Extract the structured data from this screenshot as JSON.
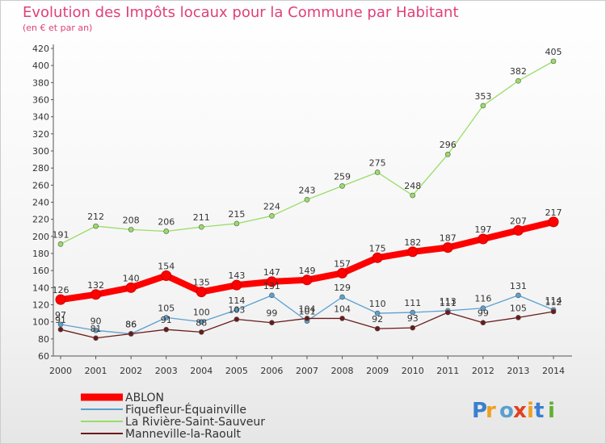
{
  "chart_data": {
    "type": "line",
    "title": "Evolution des Impôts locaux pour la Commune par Habitant",
    "subtitle": "(en € et par an)",
    "xlabel": "",
    "ylabel": "",
    "x": [
      "2000",
      "2001",
      "2002",
      "2003",
      "2004",
      "2005",
      "2006",
      "2007",
      "2008",
      "2009",
      "2010",
      "2011",
      "2012",
      "2013",
      "2014"
    ],
    "ylim": [
      60,
      420
    ],
    "yticks": [
      60,
      80,
      100,
      120,
      140,
      160,
      180,
      200,
      220,
      240,
      260,
      280,
      300,
      320,
      340,
      360,
      380,
      400,
      420
    ],
    "grid": false,
    "legend_position": "bottom-left",
    "series": [
      {
        "name": "ABLON",
        "color": "#ff0000",
        "values": [
          126,
          132,
          140,
          154,
          135,
          143,
          147,
          149,
          157,
          175,
          182,
          187,
          197,
          207,
          217
        ]
      },
      {
        "name": "Fiquefleur-Équainville",
        "color": "#5aa0d0",
        "values": [
          97,
          90,
          86,
          105,
          100,
          114,
          131,
          101,
          129,
          110,
          111,
          113,
          116,
          131,
          114
        ]
      },
      {
        "name": "La Rivière-Saint-Sauveur",
        "color": "#99dd66",
        "values": [
          191,
          212,
          208,
          206,
          211,
          215,
          224,
          243,
          259,
          275,
          248,
          296,
          353,
          382,
          405
        ]
      },
      {
        "name": "Manneville-la-Raoult",
        "color": "#6b1a1a",
        "values": [
          91,
          81,
          86,
          91,
          88,
          103,
          99,
          104,
          104,
          92,
          93,
          111,
          99,
          105,
          112
        ]
      }
    ],
    "value_labels": [
      [
        "126",
        "132",
        "140",
        "154",
        "135",
        "143",
        "147",
        "149",
        "157",
        "175",
        "182",
        "187",
        "197",
        "207",
        "217"
      ],
      [
        "97",
        "90",
        "86",
        "105",
        "100",
        "114",
        "131",
        "101",
        "129",
        "110",
        "111",
        "113",
        "116",
        "131",
        "114"
      ],
      [
        "191",
        "212",
        "208",
        "206",
        "211",
        "215",
        "224",
        "243",
        "259",
        "275",
        "248",
        "296",
        "353",
        "382",
        "405"
      ],
      [
        "91",
        "81",
        "86",
        "91",
        "88",
        "103",
        "99",
        "104",
        "104",
        "92",
        "93",
        "111",
        "99",
        "105",
        "112"
      ]
    ]
  },
  "logo": {
    "text": "Proxiti",
    "colors": [
      "#3a7fd0",
      "#f0a020",
      "#5aa0d0",
      "#e04020",
      "#f0a020",
      "#3a7fd0",
      "#60b030"
    ]
  }
}
